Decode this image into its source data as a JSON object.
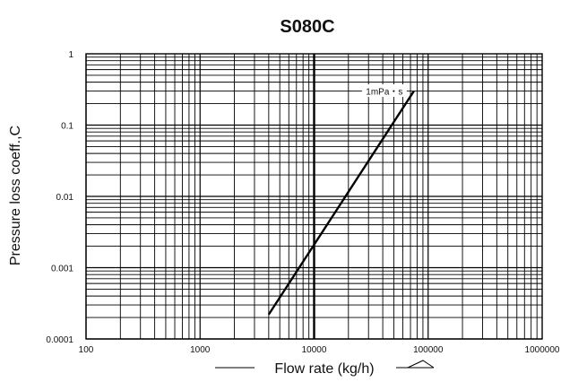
{
  "chart_data": {
    "type": "line",
    "title": "S080C",
    "xlabel": "Flow rate (kg/h)",
    "ylabel": "Pressure loss coeff.,C",
    "x_scale": "log",
    "y_scale": "log",
    "xlim": [
      100,
      1000000
    ],
    "ylim": [
      0.0001,
      1
    ],
    "x_tick_labels": [
      "100",
      "1000",
      "10000",
      "100000",
      "1000000"
    ],
    "y_tick_labels": [
      "0.0001",
      "0.001",
      "0.01",
      "0.1",
      "1"
    ],
    "x_ticks": [
      100,
      1000,
      10000,
      100000,
      1000000
    ],
    "y_ticks": [
      0.0001,
      0.001,
      0.01,
      0.1,
      1
    ],
    "grid": true,
    "series": [
      {
        "name": "1mPa・s",
        "x": [
          4000,
          75000
        ],
        "y": [
          0.00022,
          0.3
        ]
      }
    ],
    "highlight_x": 10000,
    "colors": {
      "line": "#000000",
      "grid": "#000000",
      "background": "#ffffff"
    }
  }
}
